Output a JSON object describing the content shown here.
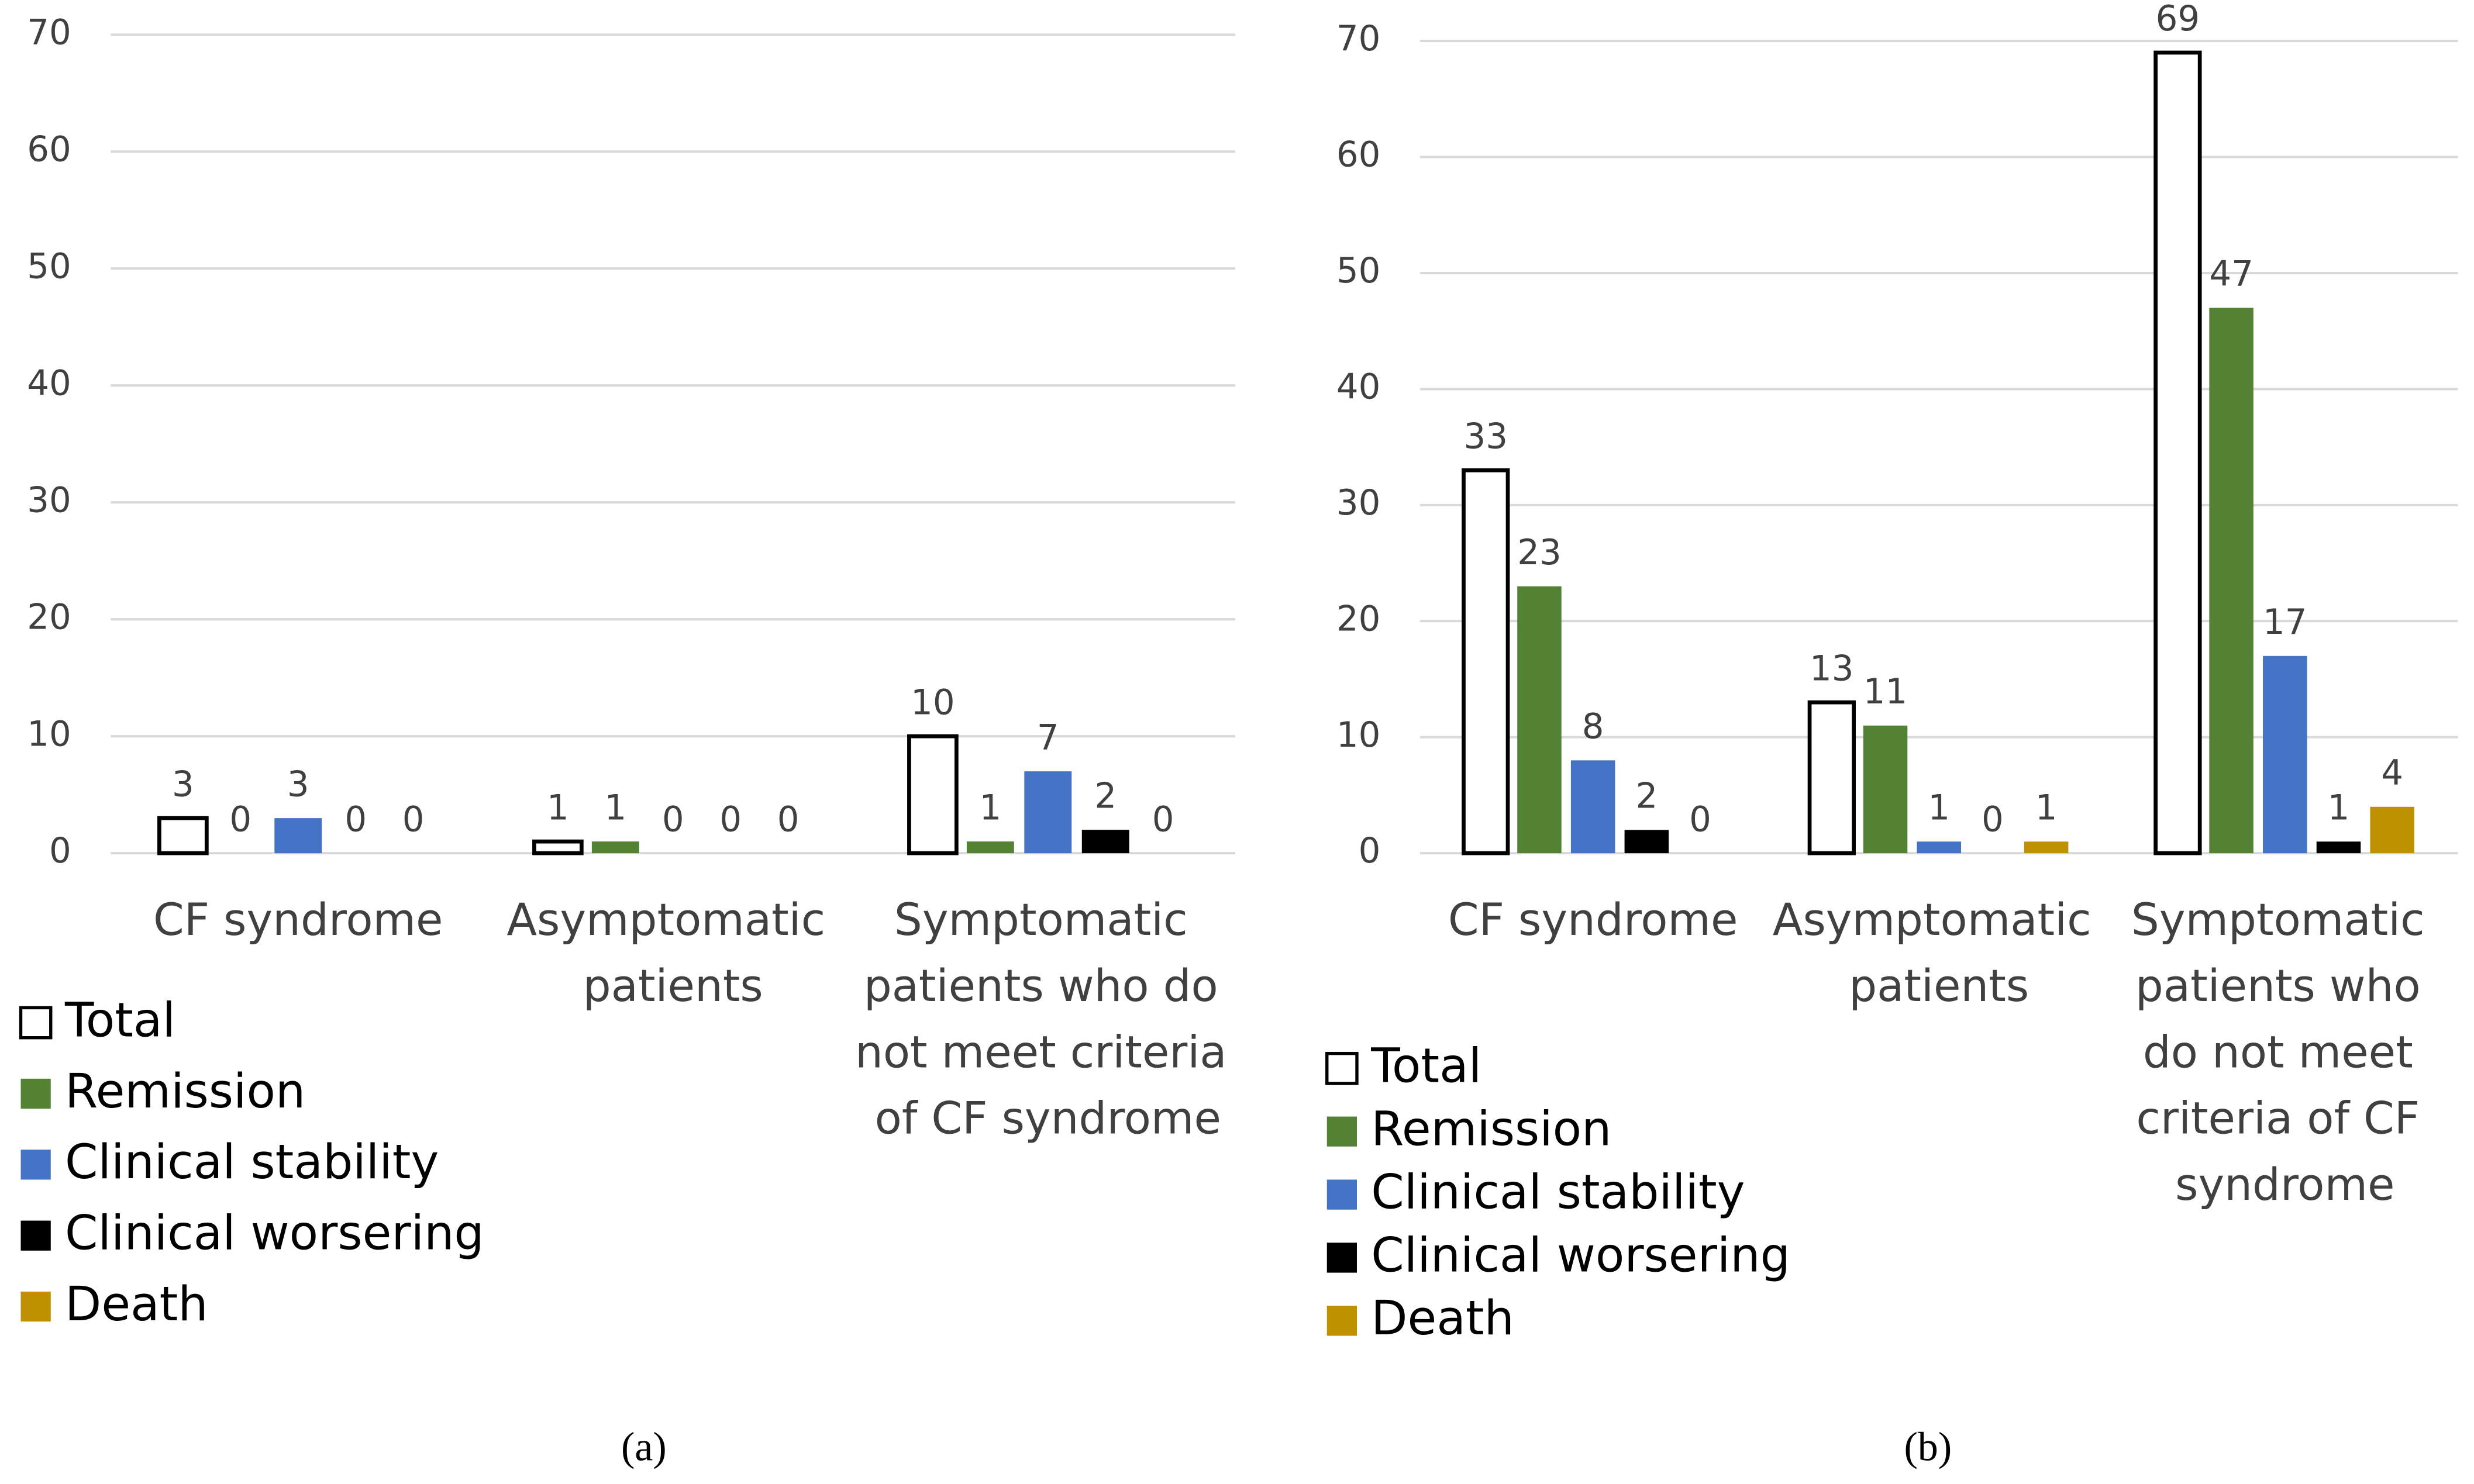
{
  "chart_data": [
    {
      "type": "bar",
      "caption": "(a)",
      "categories": [
        "CF syndrome",
        "Asymptomatic patients",
        "Symptomatic patients who do not meet criteria of CF syndrome"
      ],
      "series": [
        {
          "name": "Total",
          "color": "#ffffff",
          "values": [
            3,
            1,
            10
          ]
        },
        {
          "name": "Remission",
          "color": "#548235",
          "values": [
            0,
            1,
            1
          ]
        },
        {
          "name": "Clinical stability",
          "color": "#4472c4",
          "values": [
            3,
            0,
            7
          ]
        },
        {
          "name": "Clinical worsering",
          "color": "#000000",
          "values": [
            0,
            0,
            2
          ]
        },
        {
          "name": "Death",
          "color": "#bf9000",
          "values": [
            0,
            0,
            0
          ]
        }
      ],
      "ylim": [
        0,
        70
      ],
      "yticks": [
        0,
        10,
        20,
        30,
        40,
        50,
        60,
        70
      ],
      "grid": true
    },
    {
      "type": "bar",
      "caption": "(b)",
      "categories": [
        "CF syndrome",
        "Asymptomatic patients",
        "Symptomatic patients who do not meet criteria of CF syndrome"
      ],
      "series": [
        {
          "name": "Total",
          "color": "#ffffff",
          "values": [
            33,
            13,
            69
          ]
        },
        {
          "name": "Remission",
          "color": "#548235",
          "values": [
            23,
            11,
            47
          ]
        },
        {
          "name": "Clinical stability",
          "color": "#4472c4",
          "values": [
            8,
            1,
            17
          ]
        },
        {
          "name": "Clinical worsering",
          "color": "#000000",
          "values": [
            2,
            0,
            1
          ]
        },
        {
          "name": "Death",
          "color": "#bf9000",
          "values": [
            0,
            1,
            4
          ]
        }
      ],
      "ylim": [
        0,
        70
      ],
      "yticks": [
        0,
        10,
        20,
        30,
        40,
        50,
        60,
        70
      ],
      "grid": true
    }
  ]
}
